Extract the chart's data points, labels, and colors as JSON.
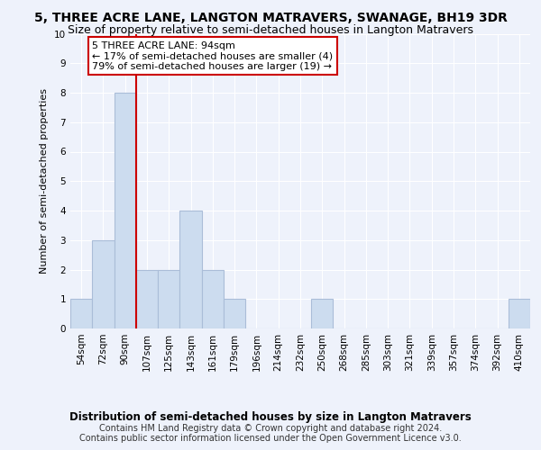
{
  "title": "5, THREE ACRE LANE, LANGTON MATRAVERS, SWANAGE, BH19 3DR",
  "subtitle": "Size of property relative to semi-detached houses in Langton Matravers",
  "xlabel": "Distribution of semi-detached houses by size in Langton Matravers",
  "ylabel": "Number of semi-detached properties",
  "footnote": "Contains HM Land Registry data © Crown copyright and database right 2024.\nContains public sector information licensed under the Open Government Licence v3.0.",
  "bin_labels": [
    "54sqm",
    "72sqm",
    "90sqm",
    "107sqm",
    "125sqm",
    "143sqm",
    "161sqm",
    "179sqm",
    "196sqm",
    "214sqm",
    "232sqm",
    "250sqm",
    "268sqm",
    "285sqm",
    "303sqm",
    "321sqm",
    "339sqm",
    "357sqm",
    "374sqm",
    "392sqm",
    "410sqm"
  ],
  "bar_heights": [
    1,
    3,
    8,
    2,
    2,
    4,
    2,
    1,
    0,
    0,
    0,
    1,
    0,
    0,
    0,
    0,
    0,
    0,
    0,
    0,
    1
  ],
  "bar_color": "#ccdcef",
  "bar_edge_color": "#aabdd8",
  "subject_line_bin_index": 2,
  "subject_line_color": "#cc0000",
  "ylim": [
    0,
    10
  ],
  "yticks": [
    0,
    1,
    2,
    3,
    4,
    5,
    6,
    7,
    8,
    9,
    10
  ],
  "annotation_title": "5 THREE ACRE LANE: 94sqm",
  "annotation_line1": "← 17% of semi-detached houses are smaller (4)",
  "annotation_line2": "79% of semi-detached houses are larger (19) →",
  "annotation_box_color": "#cc0000",
  "background_color": "#eef2fb",
  "grid_color": "#ffffff",
  "title_fontsize": 10,
  "subtitle_fontsize": 9,
  "axis_label_fontsize": 8.5,
  "ylabel_fontsize": 8,
  "tick_fontsize": 7.5,
  "annotation_fontsize": 8,
  "footnote_fontsize": 7
}
